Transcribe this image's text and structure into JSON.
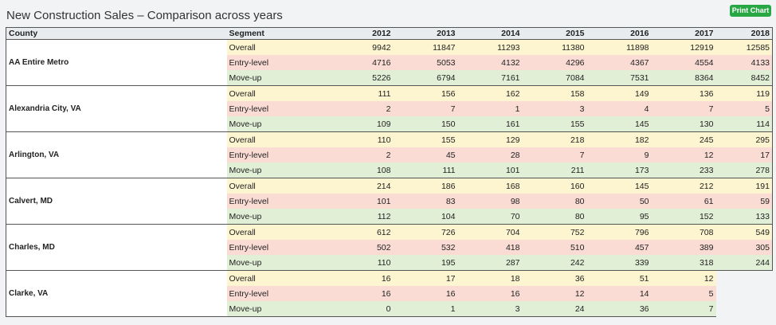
{
  "title": "New Construction Sales – Comparison across years",
  "print_button": "Print Chart",
  "columns": {
    "county": "County",
    "segment": "Segment",
    "years": [
      "2012",
      "2013",
      "2014",
      "2015",
      "2016",
      "2017",
      "2018"
    ]
  },
  "groups": [
    {
      "county": "AA Entire Metro",
      "rows": [
        {
          "segment": "Overall",
          "values": [
            "9942",
            "11847",
            "11293",
            "11380",
            "11898",
            "12919",
            "12585"
          ]
        },
        {
          "segment": "Entry-level",
          "values": [
            "4716",
            "5053",
            "4132",
            "4296",
            "4367",
            "4554",
            "4133"
          ]
        },
        {
          "segment": "Move-up",
          "values": [
            "5226",
            "6794",
            "7161",
            "7084",
            "7531",
            "8364",
            "8452"
          ]
        }
      ]
    },
    {
      "county": "Alexandria City, VA",
      "rows": [
        {
          "segment": "Overall",
          "values": [
            "111",
            "156",
            "162",
            "158",
            "149",
            "136",
            "119"
          ]
        },
        {
          "segment": "Entry-level",
          "values": [
            "2",
            "7",
            "1",
            "3",
            "4",
            "7",
            "5"
          ]
        },
        {
          "segment": "Move-up",
          "values": [
            "109",
            "150",
            "161",
            "155",
            "145",
            "130",
            "114"
          ]
        }
      ]
    },
    {
      "county": "Arlington, VA",
      "rows": [
        {
          "segment": "Overall",
          "values": [
            "110",
            "155",
            "129",
            "218",
            "182",
            "245",
            "295"
          ]
        },
        {
          "segment": "Entry-level",
          "values": [
            "2",
            "45",
            "28",
            "7",
            "9",
            "12",
            "17"
          ]
        },
        {
          "segment": "Move-up",
          "values": [
            "108",
            "111",
            "101",
            "211",
            "173",
            "233",
            "278"
          ]
        }
      ]
    },
    {
      "county": "Calvert, MD",
      "rows": [
        {
          "segment": "Overall",
          "values": [
            "214",
            "186",
            "168",
            "160",
            "145",
            "212",
            "191"
          ]
        },
        {
          "segment": "Entry-level",
          "values": [
            "101",
            "83",
            "98",
            "80",
            "50",
            "61",
            "59"
          ]
        },
        {
          "segment": "Move-up",
          "values": [
            "112",
            "104",
            "70",
            "80",
            "95",
            "152",
            "133"
          ]
        }
      ]
    },
    {
      "county": "Charles, MD",
      "rows": [
        {
          "segment": "Overall",
          "values": [
            "612",
            "726",
            "704",
            "752",
            "796",
            "708",
            "549"
          ]
        },
        {
          "segment": "Entry-level",
          "values": [
            "502",
            "532",
            "418",
            "510",
            "457",
            "389",
            "305"
          ]
        },
        {
          "segment": "Move-up",
          "values": [
            "110",
            "195",
            "287",
            "242",
            "339",
            "318",
            "244"
          ]
        }
      ]
    },
    {
      "county": "Clarke, VA",
      "rows": [
        {
          "segment": "Overall",
          "values": [
            "16",
            "17",
            "18",
            "36",
            "51",
            "12",
            ""
          ]
        },
        {
          "segment": "Entry-level",
          "values": [
            "16",
            "16",
            "16",
            "12",
            "14",
            "5",
            ""
          ]
        },
        {
          "segment": "Move-up",
          "values": [
            "0",
            "1",
            "3",
            "24",
            "36",
            "7",
            ""
          ]
        }
      ]
    }
  ]
}
